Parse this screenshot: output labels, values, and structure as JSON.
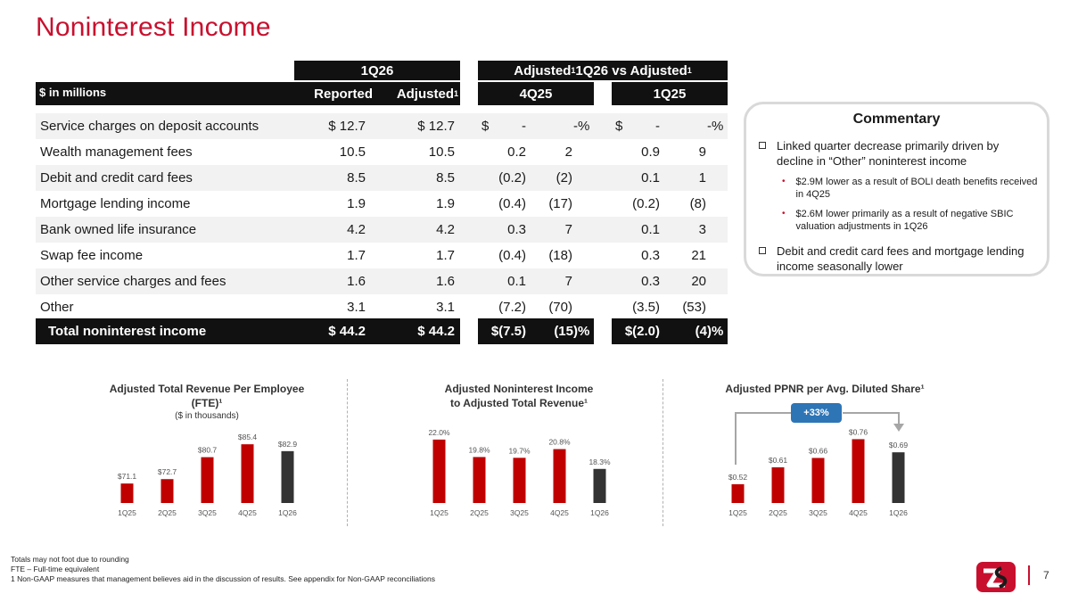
{
  "title": "Noninterest Income",
  "header": {
    "group_1q26": "1Q26",
    "group_adjusted_cmp_prefix": "Adjusted",
    "group_adjusted_cmp_sup1": "1",
    "group_adjusted_cmp_mid": " 1Q26 vs Adjusted",
    "group_adjusted_cmp_sup2": "1",
    "units": "$ in millions",
    "col_reported": "Reported",
    "col_adjusted": "Adjusted",
    "col_adjusted_sup": "1",
    "col_4q25": "4Q25",
    "col_1q25": "1Q25"
  },
  "rows": [
    {
      "label": "Service charges on deposit accounts",
      "reported": "$ 12.7",
      "adjusted": "$ 12.7",
      "q4_dollar_sign": "$",
      "q4_dollar": "-",
      "q4_pct": "-",
      "q4_pct_sign": "%",
      "q1_dollar_sign": "$",
      "q1_dollar": "-",
      "q1_pct": "-",
      "q1_pct_sign": "%"
    },
    {
      "label": "Wealth management fees",
      "reported": "10.5",
      "adjusted": "10.5",
      "q4_dollar": "0.2",
      "q4_pct": "2",
      "q1_dollar": "0.9",
      "q1_pct": "9"
    },
    {
      "label": "Debit and credit card fees",
      "reported": "8.5",
      "adjusted": "8.5",
      "q4_dollar": "(0.2)",
      "q4_pct": "(2)",
      "q1_dollar": "0.1",
      "q1_pct": "1"
    },
    {
      "label": "Mortgage lending income",
      "reported": "1.9",
      "adjusted": "1.9",
      "q4_dollar": "(0.4)",
      "q4_pct": "(17)",
      "q1_dollar": "(0.2)",
      "q1_pct": "(8)"
    },
    {
      "label": "Bank owned life insurance",
      "reported": "4.2",
      "adjusted": "4.2",
      "q4_dollar": "0.3",
      "q4_pct": "7",
      "q1_dollar": "0.1",
      "q1_pct": "3"
    },
    {
      "label": "Swap fee income",
      "reported": "1.7",
      "adjusted": "1.7",
      "q4_dollar": "(0.4)",
      "q4_pct": "(18)",
      "q1_dollar": "0.3",
      "q1_pct": "21"
    },
    {
      "label": "Other service charges and fees",
      "reported": "1.6",
      "adjusted": "1.6",
      "q4_dollar": "0.1",
      "q4_pct": "7",
      "q1_dollar": "0.3",
      "q1_pct": "20"
    },
    {
      "label": "Other",
      "reported": "3.1",
      "adjusted": "3.1",
      "q4_dollar": "(7.2)",
      "q4_pct": "(70)",
      "q1_dollar": "(3.5)",
      "q1_pct": "(53)"
    }
  ],
  "total": {
    "label": "Total noninterest income",
    "reported": "$ 44.2",
    "adjusted": "$ 44.2",
    "q4_dollar": "$(7.5)",
    "q4_pct": "(15)",
    "q4_pct_sign": "%",
    "q1_dollar": "$(2.0)",
    "q1_pct": "(4)",
    "q1_pct_sign": "%"
  },
  "commentary": {
    "title": "Commentary",
    "bullet1": "Linked quarter decrease primarily driven by decline in “Other” noninterest income",
    "sub1": "$2.9M lower  as a result of BOLI death benefits received in 4Q25",
    "sub2": "$2.6M lower primarily as a result of negative SBIC valuation adjustments in 1Q26",
    "bullet2": "Debit and credit card fees and mortgage lending income seasonally lower"
  },
  "charts": {
    "chart1_title_line1": "Adjusted Total Revenue Per Employee",
    "chart1_title_line2": "(FTE)¹",
    "chart1_subtitle": "($ in thousands)",
    "chart2_title_line1": "Adjusted Noninterest Income",
    "chart2_title_line2": "to Adjusted Total Revenue¹",
    "chart3_title": "Adjusted PPNR per Avg. Diluted Share¹",
    "chart3_badge": "+33%"
  },
  "chart_data": [
    {
      "type": "bar",
      "title": "Adjusted Total Revenue Per Employee (FTE)¹",
      "subtitle": "($ in thousands)",
      "categories": [
        "1Q25",
        "2Q25",
        "3Q25",
        "4Q25",
        "1Q26"
      ],
      "values": [
        71.1,
        72.7,
        80.7,
        85.4,
        82.9
      ],
      "labels": [
        "$71.1",
        "$72.7",
        "$80.7",
        "$85.4",
        "$82.9"
      ],
      "ylim": [
        64,
        90
      ],
      "colors": [
        "#c00000",
        "#c00000",
        "#c00000",
        "#c00000",
        "#333333"
      ]
    },
    {
      "type": "bar",
      "title": "Adjusted Noninterest Income to Adjusted Total Revenue¹",
      "categories": [
        "1Q25",
        "2Q25",
        "3Q25",
        "4Q25",
        "1Q26"
      ],
      "values": [
        22.0,
        19.8,
        19.7,
        20.8,
        18.3
      ],
      "labels": [
        "22.0%",
        "19.8%",
        "19.7%",
        "20.8%",
        "18.3%"
      ],
      "ylim": [
        14,
        23
      ],
      "colors": [
        "#c00000",
        "#c00000",
        "#c00000",
        "#c00000",
        "#333333"
      ]
    },
    {
      "type": "bar",
      "title": "Adjusted PPNR per Avg. Diluted Share¹",
      "categories": [
        "1Q25",
        "2Q25",
        "3Q25",
        "4Q25",
        "1Q26"
      ],
      "values": [
        0.52,
        0.61,
        0.66,
        0.76,
        0.69
      ],
      "labels": [
        "$0.52",
        "$0.61",
        "$0.66",
        "$0.76",
        "$0.69"
      ],
      "ylim": [
        0.42,
        0.8
      ],
      "annotation": "+33%",
      "colors": [
        "#c00000",
        "#c00000",
        "#c00000",
        "#c00000",
        "#333333"
      ]
    }
  ],
  "footnotes": {
    "line1": "Totals may not foot due to rounding",
    "line2": "FTE – Full-time equivalent",
    "line3": "1   Non-GAAP measures that management believes aid in the discussion of results. See appendix for Non-GAAP reconciliations"
  },
  "page_number": "7",
  "logo_icon": "bank-logo-icon"
}
